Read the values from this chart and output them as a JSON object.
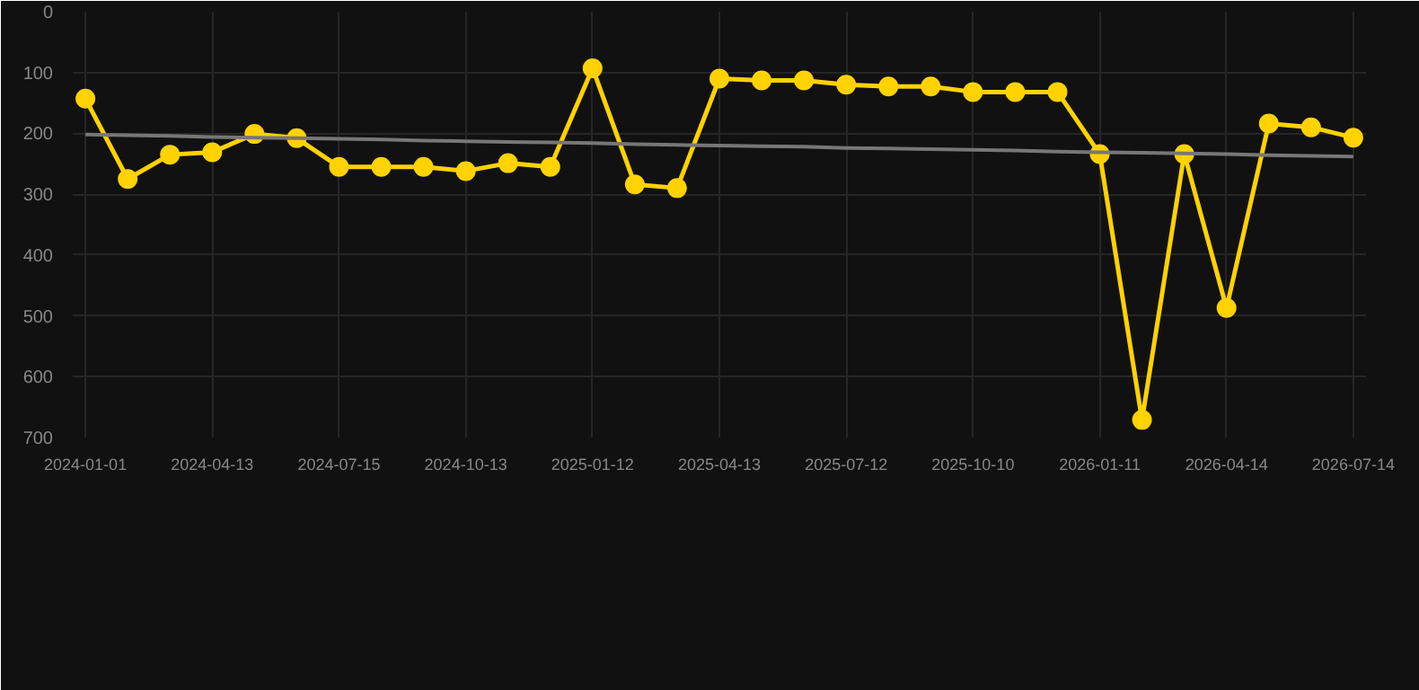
{
  "chart_data": {
    "type": "line",
    "categories": [
      "2024-01-01",
      null,
      null,
      "2024-04-13",
      null,
      null,
      "2024-07-15",
      null,
      null,
      "2024-10-13",
      null,
      null,
      "2025-01-12",
      null,
      null,
      "2025-04-13",
      null,
      null,
      "2025-07-12",
      null,
      null,
      "2025-10-10",
      null,
      null,
      "2026-01-11",
      null,
      null,
      "2026-04-14",
      null,
      null,
      "2026-07-14"
    ],
    "series": [
      {
        "color": "#ffd200",
        "marker": "circle",
        "values": [
          143,
          275,
          235,
          231,
          201,
          208,
          255,
          255,
          255,
          262,
          249,
          255,
          93,
          284,
          290,
          110,
          113,
          113,
          120,
          123,
          123,
          132,
          132,
          132,
          234,
          671,
          234,
          487,
          184,
          190,
          207
        ]
      },
      {
        "type": "line",
        "color": "#777777",
        "marker": "none",
        "values": [
          202,
          203,
          204,
          206,
          207,
          208,
          209,
          210,
          212,
          213,
          214,
          215,
          216,
          218,
          219,
          220,
          221,
          222,
          224,
          225,
          226,
          227,
          228,
          230,
          231,
          232,
          233,
          234,
          236,
          237,
          238
        ]
      }
    ],
    "ylim": [
      700,
      0
    ],
    "yticks": [
      0,
      100,
      200,
      300,
      400,
      500,
      600,
      700
    ],
    "grid": true
  }
}
